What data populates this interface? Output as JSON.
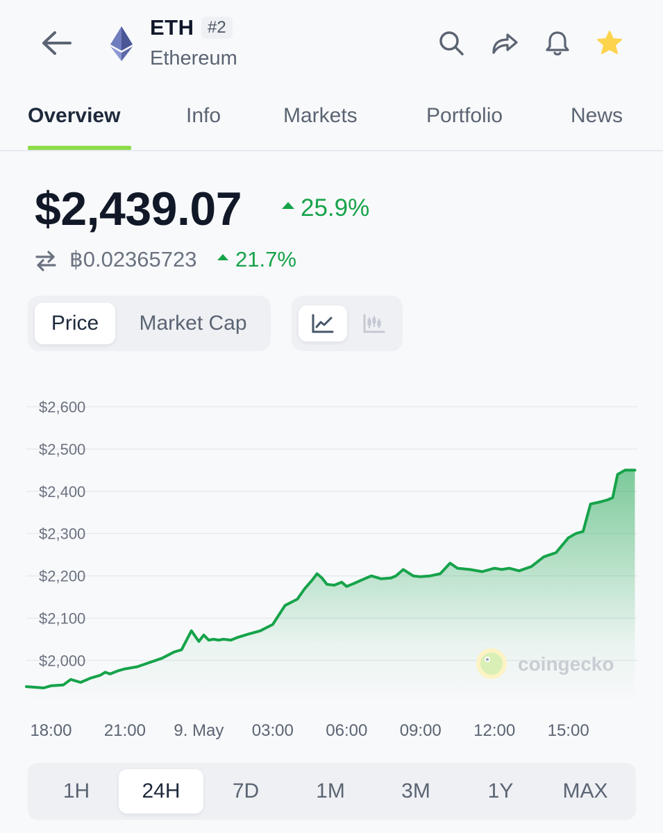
{
  "header": {
    "back_icon": "arrow-left-icon",
    "coin_icon": "ethereum-icon",
    "symbol": "ETH",
    "rank": "#2",
    "name": "Ethereum",
    "actions": [
      "search-icon",
      "share-icon",
      "bell-icon",
      "star-icon"
    ],
    "star_color": "#fcd34d"
  },
  "tabs": [
    {
      "label": "Overview",
      "active": true
    },
    {
      "label": "Info",
      "active": false
    },
    {
      "label": "Markets",
      "active": false
    },
    {
      "label": "Portfolio",
      "active": false
    },
    {
      "label": "News",
      "active": false
    }
  ],
  "price": {
    "usd": "$2,439.07",
    "usd_change": "25.9%",
    "btc": "฿0.02365723",
    "btc_change": "21.7%",
    "positive_color": "#16a34a"
  },
  "chart_toggle": {
    "options": [
      {
        "label": "Price",
        "active": true
      },
      {
        "label": "Market Cap",
        "active": false
      }
    ],
    "view_icons": [
      {
        "icon": "line-chart-icon",
        "active": true
      },
      {
        "icon": "candlestick-icon",
        "active": false
      }
    ]
  },
  "watermark": "coingecko",
  "chart_data": {
    "type": "area",
    "title": "",
    "xlabel": "",
    "ylabel": "",
    "x_ticks": [
      "18:00",
      "21:00",
      "9. May",
      "03:00",
      "06:00",
      "09:00",
      "12:00",
      "15:00"
    ],
    "y_ticks": [
      "$2,000",
      "$2,100",
      "$2,200",
      "$2,300",
      "$2,400",
      "$2,500",
      "$2,600"
    ],
    "ylim": [
      1930,
      2600
    ],
    "xlim_hours": [
      -1,
      23.8
    ],
    "line_color": "#16a34a",
    "grid": true,
    "series": [
      {
        "x": [
          -1,
          -0.3,
          0,
          0.5,
          0.8,
          1.2,
          1.6,
          2.0,
          2.2,
          2.4,
          2.7,
          3.0,
          3.5,
          4.0,
          4.5,
          5.0,
          5.3,
          5.7,
          6.0,
          6.2,
          6.4,
          6.6,
          6.8,
          7.0,
          7.3,
          7.6,
          8.0,
          8.5,
          9.0,
          9.5,
          10.0,
          10.3,
          10.6,
          10.8,
          11.0,
          11.2,
          11.5,
          11.8,
          12.0,
          12.3,
          12.6,
          13.0,
          13.4,
          13.8,
          14.0,
          14.3,
          14.7,
          15.0,
          15.4,
          15.8,
          16.2,
          16.5,
          17.0,
          17.5,
          18.0,
          18.3,
          18.6,
          19.0,
          19.5,
          20.0,
          20.5,
          21.0,
          21.3,
          21.6,
          21.9,
          22.3,
          22.6,
          22.8,
          23.0,
          23.3,
          23.5,
          23.7
        ],
        "y": [
          1938,
          1935,
          1940,
          1942,
          1955,
          1948,
          1958,
          1965,
          1972,
          1968,
          1975,
          1980,
          1985,
          1995,
          2005,
          2020,
          2025,
          2070,
          2045,
          2060,
          2048,
          2050,
          2048,
          2050,
          2048,
          2055,
          2062,
          2070,
          2085,
          2130,
          2145,
          2170,
          2190,
          2205,
          2195,
          2180,
          2178,
          2185,
          2175,
          2182,
          2190,
          2200,
          2193,
          2195,
          2200,
          2215,
          2200,
          2198,
          2200,
          2205,
          2230,
          2218,
          2215,
          2210,
          2218,
          2215,
          2218,
          2212,
          2222,
          2245,
          2255,
          2290,
          2300,
          2305,
          2370,
          2375,
          2380,
          2385,
          2440,
          2450,
          2450,
          2450
        ]
      }
    ]
  },
  "range": {
    "options": [
      {
        "label": "1H",
        "active": false
      },
      {
        "label": "24H",
        "active": true
      },
      {
        "label": "7D",
        "active": false
      },
      {
        "label": "1M",
        "active": false
      },
      {
        "label": "3M",
        "active": false
      },
      {
        "label": "1Y",
        "active": false
      },
      {
        "label": "MAX",
        "active": false
      }
    ]
  }
}
